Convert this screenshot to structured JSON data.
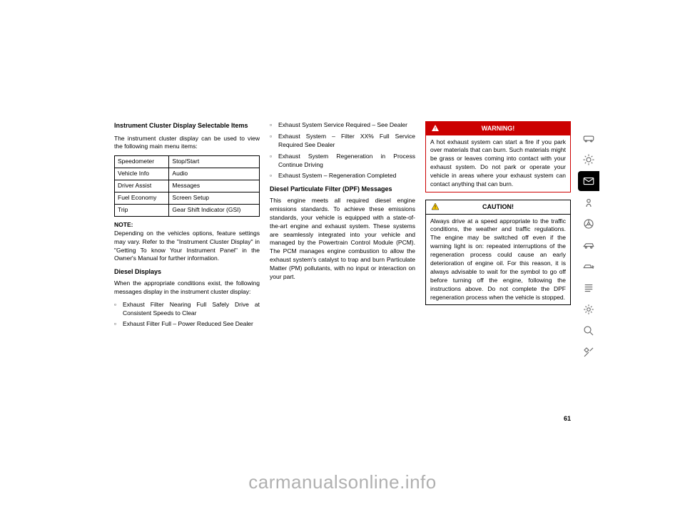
{
  "pageNumber": "61",
  "watermark": "carmanualsonline.info",
  "col1": {
    "heading1": "Instrument Cluster Display Selectable Items",
    "intro": "The instrument cluster display can be used to view the following main menu items:",
    "table": [
      [
        "Speedometer",
        "Stop/Start"
      ],
      [
        "Vehicle Info",
        "Audio"
      ],
      [
        "Driver Assist",
        "Messages"
      ],
      [
        "Fuel Economy",
        "Screen Setup"
      ],
      [
        "Trip",
        "Gear Shift Indicator (GSI)"
      ]
    ],
    "noteLabel": "NOTE:",
    "noteBody": "Depending on the vehicles options, feature settings may vary. Refer to the \"Instrument Cluster Display\" in \"Getting To know Your Instrument Panel\" in the Owner's Manual for further information.",
    "heading2": "Diesel Displays",
    "dieselIntro": "When the appropriate conditions exist, the following messages display in the instrument cluster display:",
    "bullets": [
      "Exhaust Filter Nearing Full Safely Drive at Consistent Speeds to Clear",
      "Exhaust Filter Full – Power Reduced See Dealer"
    ]
  },
  "col2": {
    "bullets": [
      "Exhaust System Service Required – See Dealer",
      "Exhaust System – Filter XX% Full Service Required See Dealer",
      "Exhaust System Regeneration in Process Continue Driving",
      "Exhaust System – Regeneration Completed"
    ],
    "heading": "Diesel Particulate Filter (DPF) Messages",
    "body": "This engine meets all required diesel engine emissions standards. To achieve these emissions standards, your vehicle is equipped with a state-of-the-art engine and exhaust system. These systems are seamlessly integrated into your vehicle and managed by the Powertrain Control Module (PCM). The PCM manages engine combustion to allow the exhaust system's catalyst to trap and burn Particulate Matter (PM) pollutants, with no input or interaction on your part."
  },
  "col3": {
    "warning": {
      "title": "WARNING!",
      "body": "A hot exhaust system can start a fire if you park over materials that can burn. Such materials might be grass or leaves coming into contact with your exhaust system. Do not park or operate your vehicle in areas where your exhaust system can contact anything that can burn."
    },
    "caution": {
      "title": "CAUTION!",
      "body": "Always drive at a speed appropriate to the traffic conditions, the weather and traffic regulations. The engine may be switched off even if the warning light is on: repeated interruptions of the regeneration process could cause an early deterioration of engine oil. For this reason, it is always advisable to wait for the symbol to go off before turning off the engine, following the instructions above. Do not complete the DPF regeneration process when the vehicle is stopped."
    }
  },
  "tabs": [
    {
      "name": "tab-1",
      "active": false
    },
    {
      "name": "tab-2",
      "active": false
    },
    {
      "name": "tab-3",
      "active": true
    },
    {
      "name": "tab-4",
      "active": false
    },
    {
      "name": "tab-5",
      "active": false
    },
    {
      "name": "tab-6",
      "active": false
    },
    {
      "name": "tab-7",
      "active": false
    },
    {
      "name": "tab-8",
      "active": false
    },
    {
      "name": "tab-9",
      "active": false
    },
    {
      "name": "tab-10",
      "active": false
    },
    {
      "name": "tab-11",
      "active": false
    }
  ]
}
